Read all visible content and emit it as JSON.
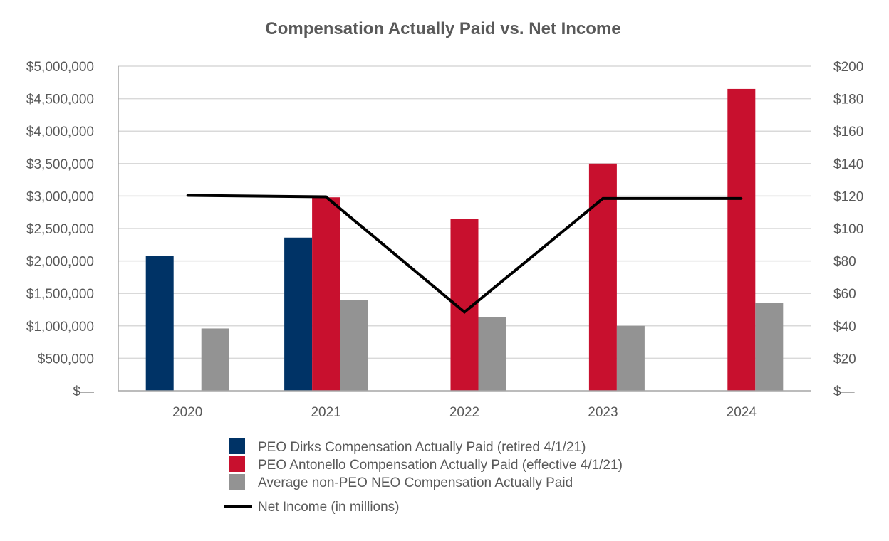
{
  "chart_data": {
    "type": "bar",
    "title": "Compensation Actually Paid vs. Net Income",
    "categories": [
      "2020",
      "2021",
      "2022",
      "2023",
      "2024"
    ],
    "ylim": [
      0,
      5000000
    ],
    "y2lim": [
      0,
      200
    ],
    "yticks": [
      0,
      500000,
      1000000,
      1500000,
      2000000,
      2500000,
      3000000,
      3500000,
      4000000,
      4500000,
      5000000
    ],
    "ytick_labels": [
      "$—",
      "$500,000",
      "$1,000,000",
      "$1,500,000",
      "$2,000,000",
      "$2,500,000",
      "$3,000,000",
      "$3,500,000",
      "$4,000,000",
      "$4,500,000",
      "$5,000,000"
    ],
    "y2ticks": [
      0,
      20,
      40,
      60,
      80,
      100,
      120,
      140,
      160,
      180,
      200
    ],
    "y2tick_labels": [
      "$—",
      "$20",
      "$40",
      "$60",
      "$80",
      "$100",
      "$120",
      "$140",
      "$160",
      "$180",
      "$200"
    ],
    "grid": true,
    "series": [
      {
        "name": "PEO Dirks Compensation Actually Paid (retired 4/1/21)",
        "type": "bar",
        "axis": "left",
        "color": "#003366",
        "values": [
          2080000,
          2360000,
          null,
          null,
          null
        ]
      },
      {
        "name": "PEO Antonello Compensation Actually Paid (effective 4/1/21)",
        "type": "bar",
        "axis": "left",
        "color": "#C8102E",
        "values": [
          null,
          2980000,
          2650000,
          3500000,
          4650000
        ]
      },
      {
        "name": "Average non-PEO NEO Compensation Actually Paid",
        "type": "bar",
        "axis": "left",
        "color": "#939393",
        "values": [
          960000,
          1400000,
          1130000,
          1000000,
          1350000
        ]
      },
      {
        "name": "Net Income (in millions)",
        "type": "line",
        "axis": "right",
        "color": "#000000",
        "values": [
          120.4,
          119.5,
          48.5,
          118.5,
          118.5
        ]
      }
    ],
    "legend_position": "bottom-center"
  }
}
